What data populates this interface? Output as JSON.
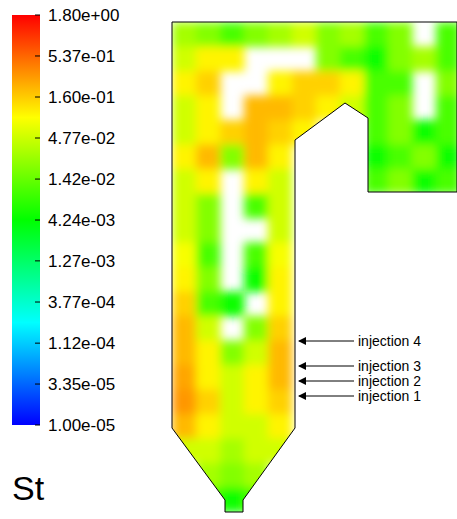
{
  "chart_data": {
    "type": "heatmap",
    "title": "St",
    "log": true,
    "colorbar_range": [
      1e-05,
      1.8
    ],
    "colorbar_ticks": [
      {
        "value": 1.8,
        "label": "1.80e+00"
      },
      {
        "value": 0.537,
        "label": "5.37e-01"
      },
      {
        "value": 0.16,
        "label": "1.60e-01"
      },
      {
        "value": 0.0477,
        "label": "4.77e-02"
      },
      {
        "value": 0.0142,
        "label": "1.42e-02"
      },
      {
        "value": 0.00424,
        "label": "4.24e-03"
      },
      {
        "value": 0.00127,
        "label": "1.27e-03"
      },
      {
        "value": 0.000377,
        "label": "3.77e-04"
      },
      {
        "value": 0.000112,
        "label": "1.12e-04"
      },
      {
        "value": 3.35e-05,
        "label": "3.35e-05"
      },
      {
        "value": 1e-05,
        "label": "1.00e-05"
      }
    ],
    "annotations": [
      "injection 4",
      "injection 3",
      "injection 2",
      "injection 1"
    ],
    "cells": [
      [
        0.03,
        0.02,
        0.01,
        0.02,
        0.03,
        0.05,
        0.02,
        0.03,
        0.01,
        0.02,
        null,
        0.01
      ],
      [
        0.05,
        0.1,
        0.1,
        null,
        null,
        null,
        0.02,
        0.01,
        0.005,
        0.02,
        0.03,
        0.01
      ],
      [
        0.1,
        0.15,
        null,
        null,
        0.1,
        0.15,
        0.15,
        0.1,
        0.01,
        0.01,
        null,
        0.02
      ],
      [
        0.05,
        0.1,
        null,
        0.2,
        0.2,
        0.15,
        0.1,
        0.05,
        0.01,
        0.02,
        null,
        0.01
      ],
      [
        0.05,
        0.1,
        0.15,
        0.2,
        0.15,
        0.1,
        null,
        null,
        0.01,
        0.02,
        0.005,
        0.01
      ],
      [
        0.1,
        0.2,
        0.02,
        0.2,
        0.1,
        null,
        null,
        null,
        0.005,
        0.01,
        0.02,
        0.005
      ],
      [
        0.05,
        0.1,
        null,
        0.1,
        0.05,
        null,
        null,
        null,
        0.01,
        0.02,
        0.005,
        0.01
      ],
      [
        0.05,
        0.02,
        null,
        0.01,
        0.05,
        null,
        null,
        null,
        null,
        null,
        null,
        null
      ],
      [
        0.05,
        0.02,
        null,
        null,
        0.05,
        null,
        null,
        null,
        null,
        null,
        null,
        null
      ],
      [
        0.08,
        0.01,
        null,
        0.01,
        0.08,
        null,
        null,
        null,
        null,
        null,
        null,
        null
      ],
      [
        0.1,
        0.02,
        null,
        0.005,
        0.1,
        null,
        null,
        null,
        null,
        null,
        null,
        null
      ],
      [
        0.15,
        0.01,
        0.005,
        null,
        0.1,
        null,
        null,
        null,
        null,
        null,
        null,
        null
      ],
      [
        0.2,
        0.05,
        null,
        0.02,
        0.15,
        null,
        null,
        null,
        null,
        null,
        null,
        null
      ],
      [
        0.2,
        0.1,
        0.02,
        0.05,
        0.2,
        null,
        null,
        null,
        null,
        null,
        null,
        null
      ],
      [
        0.25,
        0.1,
        0.05,
        0.1,
        0.2,
        null,
        null,
        null,
        null,
        null,
        null,
        null
      ],
      [
        0.3,
        0.15,
        0.05,
        0.1,
        0.15,
        null,
        null,
        null,
        null,
        null,
        null,
        null
      ],
      [
        0.2,
        0.1,
        0.05,
        0.05,
        0.1,
        null,
        null,
        null,
        null,
        null,
        null,
        null
      ],
      [
        0.05,
        0.05,
        0.03,
        0.05,
        0.05,
        null,
        null,
        null,
        null,
        null,
        null,
        null
      ],
      [
        null,
        0.03,
        0.02,
        0.03,
        null,
        null,
        null,
        null,
        null,
        null,
        null,
        null
      ],
      [
        null,
        0.01,
        0.005,
        0.01,
        null,
        null,
        null,
        null,
        null,
        null,
        null,
        null
      ]
    ]
  }
}
